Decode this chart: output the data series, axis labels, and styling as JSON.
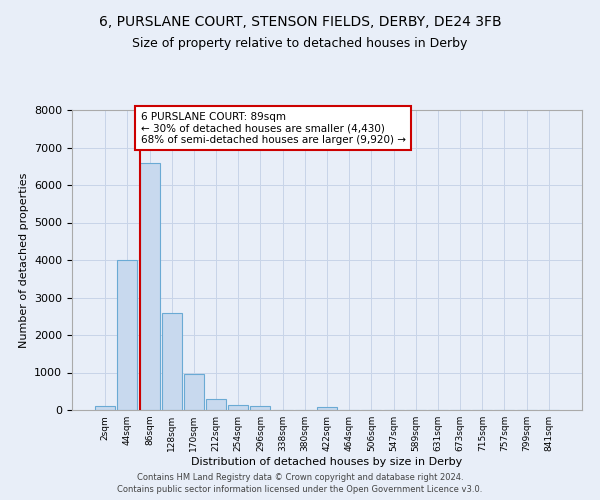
{
  "title": "6, PURSLANE COURT, STENSON FIELDS, DERBY, DE24 3FB",
  "subtitle": "Size of property relative to detached houses in Derby",
  "xlabel": "Distribution of detached houses by size in Derby",
  "ylabel": "Number of detached properties",
  "bin_labels": [
    "2sqm",
    "44sqm",
    "86sqm",
    "128sqm",
    "170sqm",
    "212sqm",
    "254sqm",
    "296sqm",
    "338sqm",
    "380sqm",
    "422sqm",
    "464sqm",
    "506sqm",
    "547sqm",
    "589sqm",
    "631sqm",
    "673sqm",
    "715sqm",
    "757sqm",
    "799sqm",
    "841sqm"
  ],
  "bar_values": [
    100,
    4000,
    6600,
    2600,
    950,
    300,
    130,
    100,
    0,
    0,
    70,
    0,
    0,
    0,
    0,
    0,
    0,
    0,
    0,
    0,
    0
  ],
  "bar_color": "#c8d9ee",
  "bar_edge_color": "#6aaad4",
  "red_line_color": "#cc0000",
  "annotation_text": "6 PURSLANE COURT: 89sqm\n← 30% of detached houses are smaller (4,430)\n68% of semi-detached houses are larger (9,920) →",
  "annotation_box_color": "#ffffff",
  "annotation_box_edge_color": "#cc0000",
  "ylim": [
    0,
    8000
  ],
  "grid_color": "#c8d4e8",
  "background_color": "#e8eef8",
  "plot_bg_color": "#e8eef8",
  "footer_line1": "Contains HM Land Registry data © Crown copyright and database right 2024.",
  "footer_line2": "Contains public sector information licensed under the Open Government Licence v3.0.",
  "title_fontsize": 10,
  "subtitle_fontsize": 9
}
